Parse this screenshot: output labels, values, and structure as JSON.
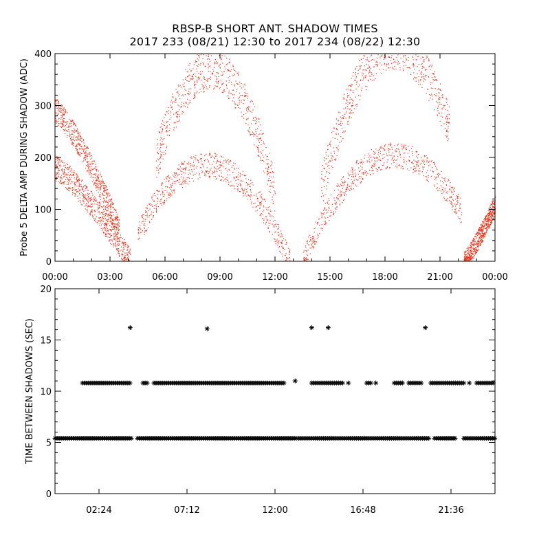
{
  "chart_data": [
    {
      "type": "scatter",
      "title": "RBSP-B SHORT ANT. SHADOW TIMES",
      "subtitle": "2017 233 (08/21) 12:30 to 2017 234 (08/22) 12:30",
      "ylabel": "Probe 5 DELTA AMP DURING SHADOW (ADC)",
      "xlabel": "",
      "xlim_hours": [
        0,
        24
      ],
      "ylim": [
        0,
        400
      ],
      "x_tick_labels": [
        "00:00",
        "03:00",
        "06:00",
        "09:00",
        "12:00",
        "15:00",
        "18:00",
        "21:00",
        "00:00"
      ],
      "y_tick_labels": [
        "0",
        "100",
        "200",
        "300",
        "400"
      ],
      "color": "#e8321a",
      "series": [
        {
          "segments": [
            {
              "x_start": 0.0,
              "x_end": 4.1,
              "y_start": 180,
              "y_end": 0,
              "spread": 25
            },
            {
              "x_start": 0.0,
              "x_end": 3.5,
              "y_start": 290,
              "y_end": 60,
              "spread": 25
            },
            {
              "x_start": 4.5,
              "x_end": 12.8,
              "y_peak": 185,
              "x_peak": 8.3,
              "y_ends": 0,
              "spread": 25
            },
            {
              "x_start": 5.5,
              "x_end": 12.0,
              "y_peak": 370,
              "x_peak": 8.5,
              "y_ends": 130,
              "spread": 40
            },
            {
              "x_start": 13.5,
              "x_end": 22.2,
              "y_peak": 205,
              "x_peak": 18.5,
              "y_ends": 0,
              "spread": 25
            },
            {
              "x_start": 14.5,
              "x_end": 21.5,
              "y_peak": 410,
              "x_peak": 18.5,
              "y_ends": 140,
              "spread": 40
            },
            {
              "x_start": 22.3,
              "x_end": 24.0,
              "y_start": 0,
              "y_end": 110,
              "spread": 20
            }
          ]
        }
      ]
    },
    {
      "type": "scatter",
      "ylabel": "TIME BETWEEN SHADOWS (SEC)",
      "xlabel": "",
      "xlim_hours": [
        0,
        24
      ],
      "ylim": [
        0,
        20
      ],
      "x_tick_labels": [
        "02:24",
        "07:12",
        "12:00",
        "16:48",
        "21:36"
      ],
      "y_tick_labels": [
        "0",
        "5",
        "10",
        "15",
        "20"
      ],
      "marker": "asterisk",
      "color": "#000000",
      "series": [
        {
          "bands": [
            {
              "y": 5.4,
              "x_ranges": [
                [
                  0.0,
                  4.2
                ],
                [
                  4.5,
                  13.2
                ],
                [
                  13.3,
                  20.5
                ],
                [
                  20.7,
                  21.9
                ],
                [
                  22.3,
                  24.0
                ]
              ]
            },
            {
              "y": 10.8,
              "x_ranges": [
                [
                  1.5,
                  4.1
                ],
                [
                  4.8,
                  5.1
                ],
                [
                  5.4,
                  12.5
                ],
                [
                  14.0,
                  15.8
                ],
                [
                  17.0,
                  17.3
                ],
                [
                  18.5,
                  19.0
                ],
                [
                  19.3,
                  20.0
                ],
                [
                  20.5,
                  22.3
                ],
                [
                  23.0,
                  24.0
                ]
              ]
            }
          ],
          "extra_points": [
            {
              "x": 4.1,
              "y": 16.2
            },
            {
              "x": 8.3,
              "y": 16.1
            },
            {
              "x": 13.1,
              "y": 11.0
            },
            {
              "x": 14.0,
              "y": 16.2
            },
            {
              "x": 14.9,
              "y": 16.2
            },
            {
              "x": 16.0,
              "y": 10.8
            },
            {
              "x": 17.5,
              "y": 10.8
            },
            {
              "x": 20.2,
              "y": 16.2
            },
            {
              "x": 22.6,
              "y": 10.8
            }
          ]
        }
      ]
    }
  ]
}
